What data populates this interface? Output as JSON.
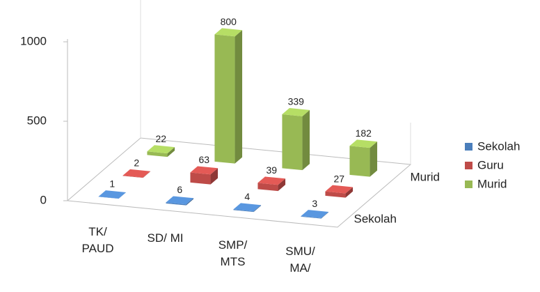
{
  "chart_data": {
    "type": "bar3d",
    "categories": [
      "TK/\nPAUD",
      "SD/ MI",
      "SMP/\nMTS",
      "SMU/\nMA/"
    ],
    "series": [
      {
        "name": "Sekolah",
        "color": "#4a7ebb",
        "values": [
          1,
          6,
          4,
          3
        ]
      },
      {
        "name": "Guru",
        "color": "#be4b48",
        "values": [
          2,
          63,
          39,
          27
        ]
      },
      {
        "name": "Murid",
        "color": "#98b954",
        "values": [
          22,
          800,
          339,
          182
        ]
      }
    ],
    "ylim": [
      0,
      1000
    ],
    "yticks": [
      0,
      500,
      1000
    ],
    "legend": "right"
  }
}
